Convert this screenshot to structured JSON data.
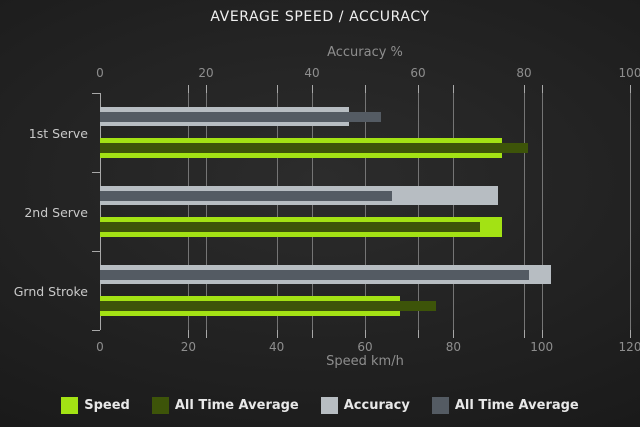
{
  "title": "AVERAGE SPEED / ACCURACY",
  "colors": {
    "speed": "#a3e214",
    "speed_avg": "#3d5409",
    "accuracy": "#b7bdc2",
    "accuracy_avg": "#545b63"
  },
  "chart_data": {
    "type": "bar",
    "orientation": "horizontal",
    "title": "AVERAGE SPEED / ACCURACY",
    "categories": [
      "1st Serve",
      "2nd Serve",
      "Grnd Stroke"
    ],
    "series": [
      {
        "name": "Accuracy",
        "axis": "top",
        "color_key": "accuracy",
        "values": [
          47,
          75,
          85
        ]
      },
      {
        "name": "All Time Average",
        "axis": "top",
        "color_key": "accuracy_avg",
        "values": [
          53,
          55,
          81
        ]
      },
      {
        "name": "Speed",
        "axis": "bottom",
        "color_key": "speed",
        "values": [
          91,
          91,
          68
        ]
      },
      {
        "name": "All Time Average",
        "axis": "bottom",
        "color_key": "speed_avg",
        "values": [
          97,
          86,
          76
        ]
      }
    ],
    "axes": {
      "top": {
        "label": "Accuracy %",
        "min": 0,
        "max": 100,
        "ticks": [
          0,
          20,
          40,
          60,
          80,
          100
        ]
      },
      "bottom": {
        "label": "Speed km/h",
        "min": 0,
        "max": 120,
        "ticks": [
          0,
          20,
          40,
          60,
          80,
          100,
          120
        ]
      }
    },
    "grid": true,
    "legend_position": "bottom",
    "legend": [
      {
        "label": "Speed",
        "color_key": "speed"
      },
      {
        "label": "All Time Average",
        "color_key": "speed_avg"
      },
      {
        "label": "Accuracy",
        "color_key": "accuracy"
      },
      {
        "label": "All Time Average",
        "color_key": "accuracy_avg"
      }
    ]
  }
}
